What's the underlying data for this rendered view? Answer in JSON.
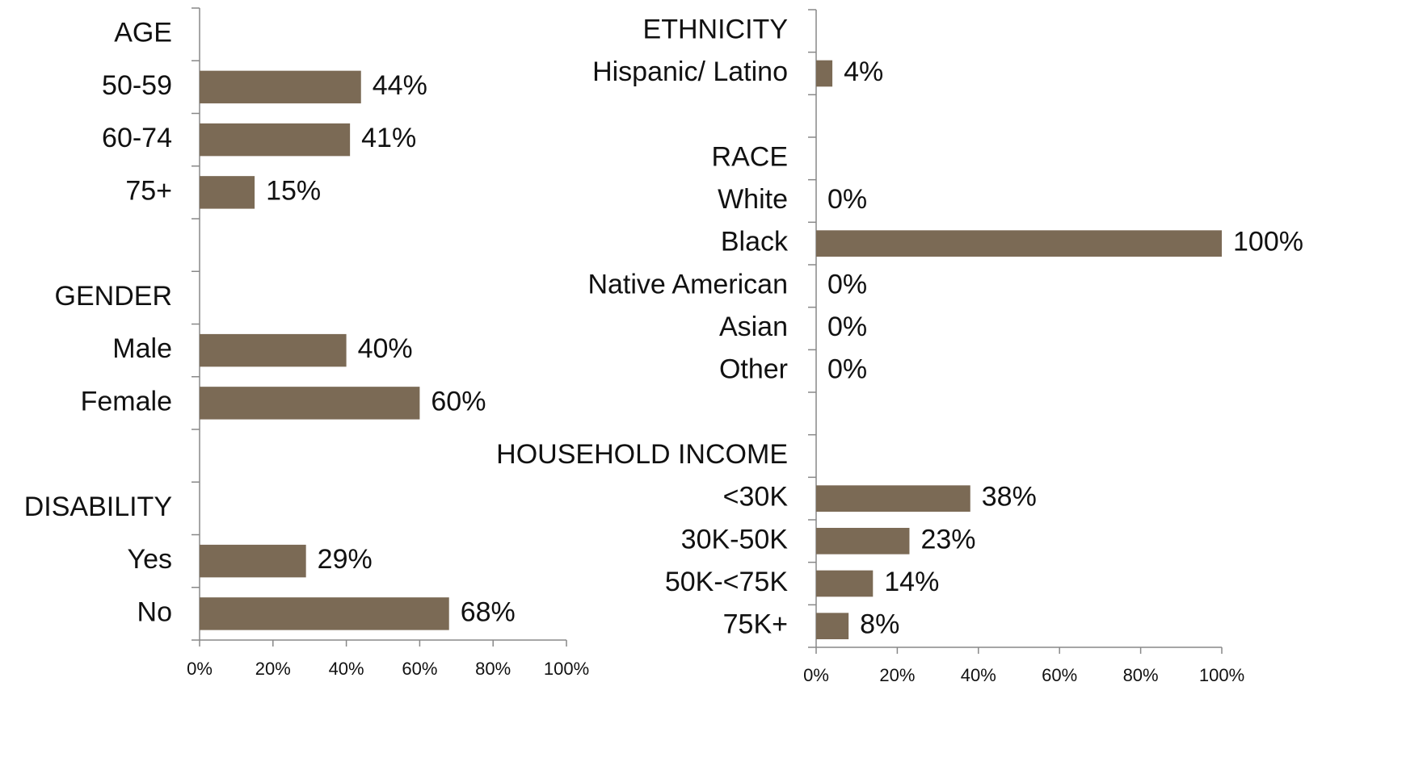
{
  "chart_data": [
    {
      "type": "bar",
      "orientation": "horizontal",
      "color": "#7b6a55",
      "categories": [
        "AGE",
        "50-59",
        "60-74",
        "75+",
        null,
        "GENDER",
        "Male",
        "Female",
        null,
        "DISABILITY",
        "Yes",
        "No"
      ],
      "values": [
        null,
        44,
        41,
        15,
        null,
        null,
        40,
        60,
        null,
        null,
        29,
        68
      ],
      "value_labels": [
        null,
        "44%",
        "41%",
        "15%",
        null,
        null,
        "40%",
        "60%",
        null,
        null,
        "29%",
        "68%"
      ],
      "xlim": [
        0,
        100
      ],
      "xticks": [
        {
          "value": 0,
          "label": "0%"
        },
        {
          "value": 20,
          "label": "20%"
        },
        {
          "value": 40,
          "label": "40%"
        },
        {
          "value": 60,
          "label": "60%"
        },
        {
          "value": 80,
          "label": "80%"
        },
        {
          "value": 100,
          "label": "100%"
        }
      ]
    },
    {
      "type": "bar",
      "orientation": "horizontal",
      "color": "#7b6a55",
      "categories": [
        "ETHNICITY",
        "Hispanic/ Latino",
        null,
        "RACE",
        "White",
        "Black",
        "Native American",
        "Asian",
        "Other",
        null,
        "HOUSEHOLD INCOME",
        "<30K",
        "30K-50K",
        "50K-<75K",
        "75K+"
      ],
      "values": [
        null,
        4,
        null,
        null,
        0,
        100,
        0,
        0,
        0,
        null,
        null,
        38,
        23,
        14,
        8
      ],
      "value_labels": [
        null,
        "4%",
        null,
        null,
        "0%",
        "100%",
        "0%",
        "0%",
        "0%",
        null,
        null,
        "38%",
        "23%",
        "14%",
        "8%"
      ],
      "xlim": [
        0,
        100
      ],
      "xticks": [
        {
          "value": 0,
          "label": "0%"
        },
        {
          "value": 20,
          "label": "20%"
        },
        {
          "value": 40,
          "label": "40%"
        },
        {
          "value": 60,
          "label": "60%"
        },
        {
          "value": 80,
          "label": "80%"
        },
        {
          "value": 100,
          "label": "100%"
        }
      ]
    }
  ]
}
